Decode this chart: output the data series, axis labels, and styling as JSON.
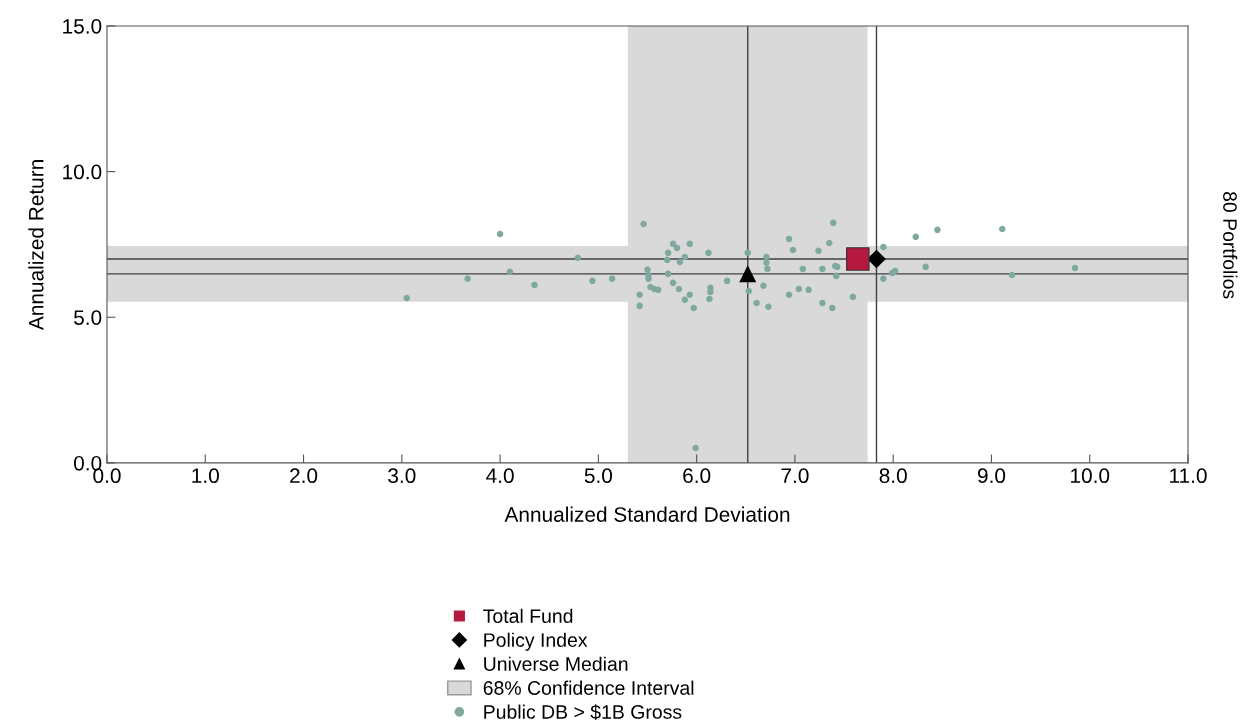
{
  "chart_data": {
    "type": "scatter",
    "xlabel": "Annualized Standard Deviation",
    "ylabel": "Annualized Return",
    "xlim": [
      0,
      11
    ],
    "ylim": [
      0,
      15
    ],
    "xticks": [
      {
        "value": 0,
        "label": "0.0"
      },
      {
        "value": 1,
        "label": "1.0"
      },
      {
        "value": 2,
        "label": "2.0"
      },
      {
        "value": 3,
        "label": "3.0"
      },
      {
        "value": 4,
        "label": "4.0"
      },
      {
        "value": 5,
        "label": "5.0"
      },
      {
        "value": 6,
        "label": "6.0"
      },
      {
        "value": 7,
        "label": "7.0"
      },
      {
        "value": 8,
        "label": "8.0"
      },
      {
        "value": 9,
        "label": "9.0"
      },
      {
        "value": 10,
        "label": "10.0"
      },
      {
        "value": 11,
        "label": "11.0"
      }
    ],
    "yticks": [
      {
        "value": 0,
        "label": "0.0"
      },
      {
        "value": 5,
        "label": "5.0"
      },
      {
        "value": 10,
        "label": "10.0"
      },
      {
        "value": 15,
        "label": "15.0"
      }
    ],
    "grid": false,
    "legend": "bottom",
    "bands": [
      {
        "axis": "x",
        "from": 5.3,
        "to": 7.74,
        "label": "68% Confidence Interval",
        "color": "#d9d9d9"
      },
      {
        "axis": "y",
        "from": 5.53,
        "to": 7.45,
        "label": null,
        "color": "#d9d9d9"
      }
    ],
    "ref_lines": [
      {
        "axis": "x",
        "value": 6.52,
        "label": null,
        "color": "#404040"
      },
      {
        "axis": "x",
        "value": 7.83,
        "label": null,
        "color": "#404040"
      },
      {
        "axis": "y",
        "value": 7.0,
        "label": null,
        "color": "#404040"
      },
      {
        "axis": "y",
        "value": 6.49,
        "label": null,
        "color": "#404040"
      }
    ],
    "annotations": [
      "80 Portfolios"
    ],
    "series": [
      {
        "name": "Total Fund",
        "color": "#b5193f",
        "marker": "square",
        "x": [
          7.64
        ],
        "values": [
          7.0
        ]
      },
      {
        "name": "Policy Index",
        "color": "#000000",
        "marker": "diamond",
        "x": [
          7.83
        ],
        "values": [
          7.0
        ]
      },
      {
        "name": "Universe Median",
        "color": "#000000",
        "marker": "triangle",
        "x": [
          6.52
        ],
        "values": [
          6.49
        ]
      },
      {
        "name": "Public DB > $1B Gross",
        "color": "#7fa9a0",
        "marker": "circle",
        "x": [
          3.05,
          3.67,
          4.0,
          4.1,
          4.35,
          4.79,
          4.94,
          5.14,
          5.46,
          5.76,
          5.8,
          5.93,
          5.71,
          6.12,
          5.7,
          5.83,
          5.88,
          6.52,
          6.71,
          6.71,
          6.72,
          5.5,
          5.51,
          5.51,
          5.71,
          6.31,
          5.53,
          5.57,
          5.61,
          5.76,
          5.82,
          5.42,
          5.93,
          5.88,
          6.14,
          6.14,
          6.13,
          5.42,
          5.97,
          6.53,
          6.68,
          6.61,
          6.73,
          6.94,
          6.94,
          7.39,
          6.98,
          7.35,
          7.24,
          7.08,
          7.28,
          7.41,
          7.43,
          7.42,
          7.04,
          7.14,
          7.59,
          7.28,
          7.38,
          7.9,
          7.9,
          7.99,
          8.02,
          8.23,
          8.45,
          8.33,
          9.11,
          9.85,
          9.21,
          5.99
        ],
        "values": [
          5.66,
          6.32,
          7.86,
          6.56,
          6.11,
          7.04,
          6.25,
          6.32,
          8.2,
          7.52,
          7.38,
          7.52,
          7.21,
          7.21,
          6.97,
          6.9,
          7.07,
          7.21,
          7.07,
          6.87,
          6.66,
          6.63,
          6.45,
          6.32,
          6.49,
          6.25,
          6.04,
          5.97,
          5.94,
          6.18,
          5.97,
          5.77,
          5.77,
          5.6,
          6.01,
          5.87,
          5.63,
          5.39,
          5.32,
          5.9,
          6.08,
          5.49,
          5.36,
          7.69,
          5.77,
          8.24,
          7.31,
          7.55,
          7.28,
          6.66,
          6.66,
          6.76,
          6.73,
          6.42,
          5.97,
          5.94,
          5.7,
          5.49,
          5.32,
          7.41,
          6.32,
          6.52,
          6.59,
          7.76,
          8.0,
          6.73,
          8.03,
          6.69,
          6.45,
          0.51
        ]
      }
    ]
  }
}
